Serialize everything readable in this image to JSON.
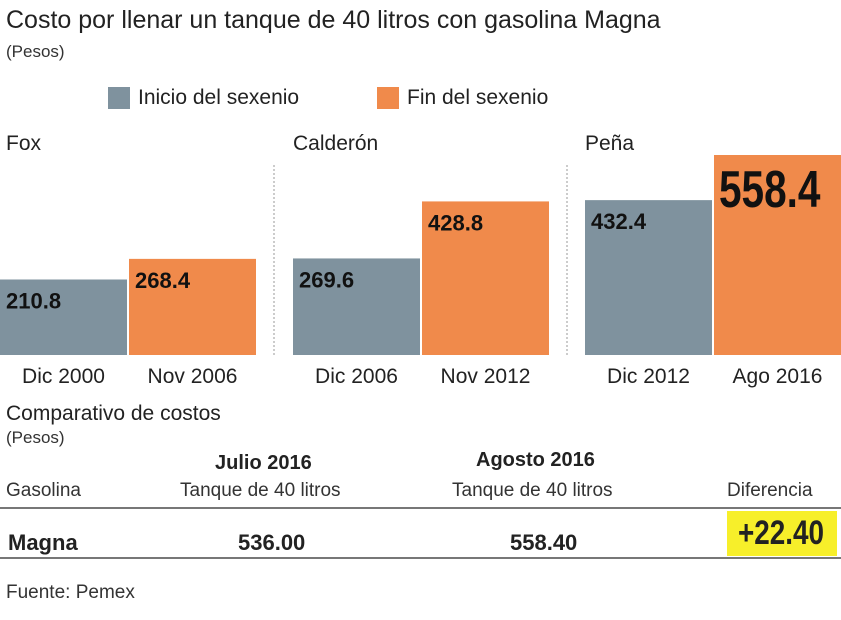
{
  "chart_data": {
    "type": "bar",
    "title": "Costo por llenar un tanque de 40 litros con gasolina Magna",
    "subtitle": "(Pesos)",
    "legend": [
      {
        "name": "Inicio del sexenio",
        "color": "#7f929e"
      },
      {
        "name": "Fin del sexenio",
        "color": "#f08a4b"
      }
    ],
    "legend_placement": "top",
    "grid": false,
    "ylim": [
      0,
      558.4
    ],
    "groups": [
      {
        "name": "Fox",
        "bars": [
          {
            "series": "Inicio del sexenio",
            "label": "Dic 2000",
            "value": 210.8,
            "value_text": "210.8"
          },
          {
            "series": "Fin del sexenio",
            "label": "Nov 2006",
            "value": 268.4,
            "value_text": "268.4"
          }
        ]
      },
      {
        "name": "Calderón",
        "bars": [
          {
            "series": "Inicio del sexenio",
            "label": "Dic 2006",
            "value": 269.6,
            "value_text": "269.6"
          },
          {
            "series": "Fin del sexenio",
            "label": "Nov 2012",
            "value": 428.8,
            "value_text": "428.8"
          }
        ]
      },
      {
        "name": "Peña",
        "bars": [
          {
            "series": "Inicio del sexenio",
            "label": "Dic 2012",
            "value": 432.4,
            "value_text": "432.4"
          },
          {
            "series": "Fin del sexenio",
            "label": "Ago 2016",
            "value": 558.4,
            "value_text": "558.4"
          }
        ]
      }
    ]
  },
  "table": {
    "title": "Comparativo de costos",
    "subtitle": "(Pesos)",
    "col_dates": [
      "Julio 2016",
      "Agosto 2016"
    ],
    "headers": [
      "Gasolina",
      "Tanque de 40 litros",
      "Tanque de 40 litros",
      "Diferencia"
    ],
    "row": [
      "Magna",
      "536.00",
      "558.40",
      "+22.40"
    ],
    "highlight_color": "#f7ef2a"
  },
  "source": "Fuente: Pemex"
}
